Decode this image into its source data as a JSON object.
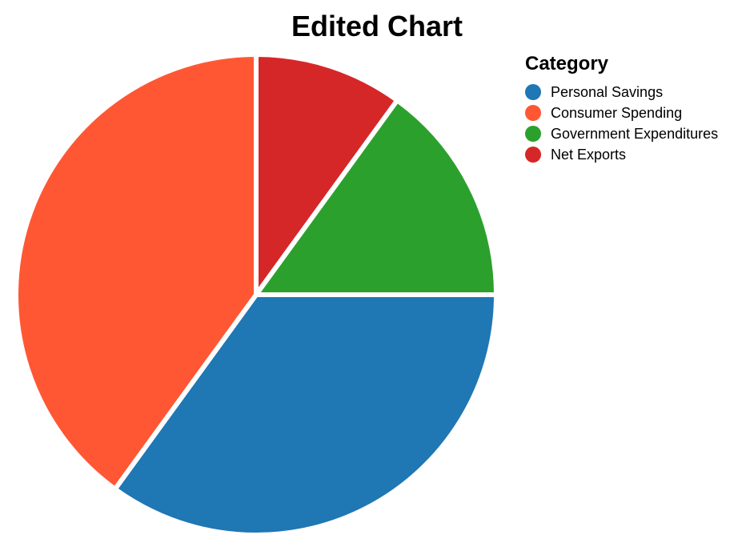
{
  "chart_data": {
    "type": "pie",
    "title": "Edited Chart",
    "legend_title": "Category",
    "legend_position": "right",
    "slices": [
      {
        "label": "Personal Savings",
        "value": 35,
        "color": "#1f77b4"
      },
      {
        "label": "Consumer Spending",
        "value": 40,
        "color": "#ff5733"
      },
      {
        "label": "Government Expenditures",
        "value": 15,
        "color": "#2ca02c"
      },
      {
        "label": "Net Exports",
        "value": 10,
        "color": "#d62728"
      }
    ]
  }
}
